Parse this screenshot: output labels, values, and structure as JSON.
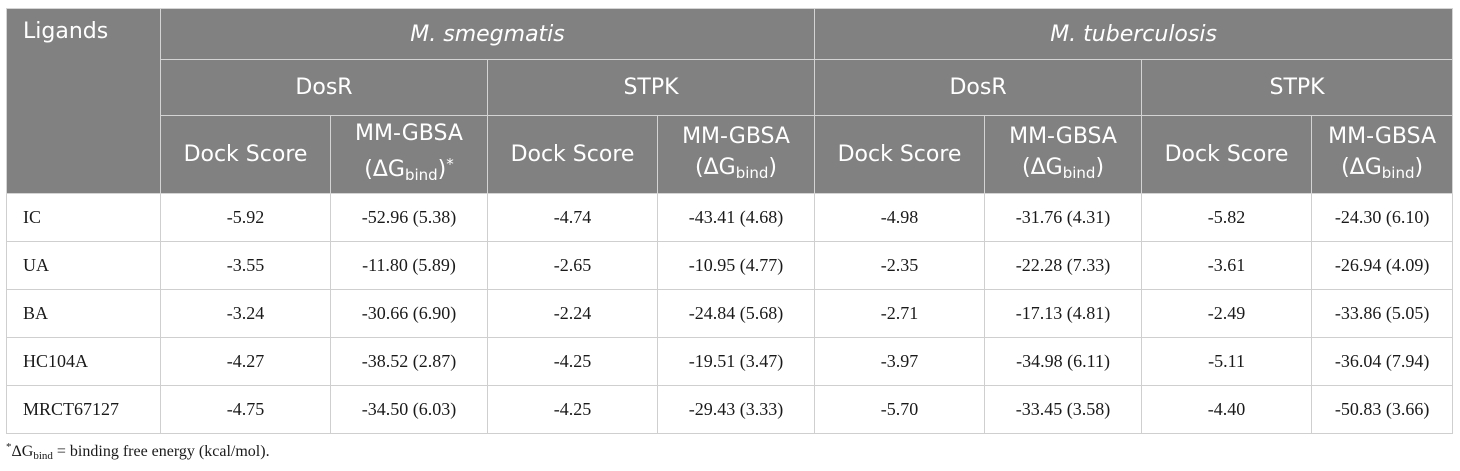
{
  "table": {
    "ligands_header": "Ligands",
    "species": [
      "M. smegmatis",
      "M. tuberculosis"
    ],
    "targets": [
      "DosR",
      "STPK",
      "DosR",
      "STPK"
    ],
    "dock_score_label": "Dock Score",
    "mmgbsa_label": "MM-GBSA",
    "delta_g": "(ΔG",
    "delta_g_sub": "bind",
    "close_paren": ")",
    "first_star": "*",
    "rows": [
      {
        "ligand": "IC",
        "values": [
          "-5.92",
          "-52.96 (5.38)",
          "-4.74",
          "-43.41 (4.68)",
          "-4.98",
          "-31.76 (4.31)",
          "-5.82",
          "-24.30 (6.10)"
        ]
      },
      {
        "ligand": "UA",
        "values": [
          "-3.55",
          "-11.80 (5.89)",
          "-2.65",
          "-10.95 (4.77)",
          "-2.35",
          "-22.28 (7.33)",
          "-3.61",
          "-26.94 (4.09)"
        ]
      },
      {
        "ligand": "BA",
        "values": [
          "-3.24",
          "-30.66 (6.90)",
          "-2.24",
          "-24.84 (5.68)",
          "-2.71",
          "-17.13 (4.81)",
          "-2.49",
          "-33.86 (5.05)"
        ]
      },
      {
        "ligand": "HC104A",
        "values": [
          "-4.27",
          "-38.52 (2.87)",
          "-4.25",
          "-19.51 (3.47)",
          "-3.97",
          "-34.98 (6.11)",
          "-5.11",
          "-36.04 (7.94)"
        ]
      },
      {
        "ligand": "MRCT67127",
        "values": [
          "-4.75",
          "-34.50 (6.03)",
          "-4.25",
          "-29.43 (3.33)",
          "-5.70",
          "-33.45 (3.58)",
          "-4.40",
          "-50.83 (3.66)"
        ]
      }
    ]
  },
  "footnote": {
    "star": "*",
    "delta_g": "ΔG",
    "sub": "bind",
    "text": " = binding free energy (kcal/mol)."
  }
}
